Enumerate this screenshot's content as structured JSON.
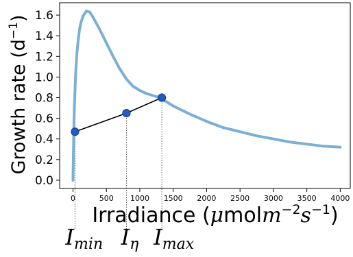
{
  "chart_data": {
    "type": "line",
    "xlabel": "Irradiance (μmolm⁻²s⁻¹)",
    "xlabel_parts": {
      "prefix": "Irradiance (",
      "mu": "μ",
      "mol": "mol",
      "m": "m",
      "m_exp": "−2",
      "s": "s",
      "s_exp": "−1",
      "suffix": ")"
    },
    "ylabel": "Growth rate (d⁻¹)",
    "ylabel_parts": {
      "prefix": "Growth rate (d",
      "exp": "−1",
      "suffix": ")"
    },
    "xlim": [
      -200,
      4150
    ],
    "ylim": [
      -0.08,
      1.72
    ],
    "x_ticks": [
      0,
      500,
      1000,
      1500,
      2000,
      2500,
      3000,
      3500,
      4000
    ],
    "y_ticks": [
      0.0,
      0.2,
      0.4,
      0.6,
      0.8,
      1.0,
      1.2,
      1.4,
      1.6
    ],
    "grid": false,
    "series": [
      {
        "color": "#7bafd4",
        "x": [
          0,
          10,
          20,
          40,
          60,
          80,
          100,
          120,
          150,
          200,
          250,
          300,
          400,
          500,
          600,
          700,
          800,
          900,
          1000,
          1100,
          1200,
          1300,
          1500,
          1750,
          2000,
          2250,
          2500,
          2750,
          3000,
          3250,
          3500,
          3750,
          4000
        ],
        "y": [
          0.0,
          0.41,
          0.69,
          1.04,
          1.24,
          1.37,
          1.47,
          1.53,
          1.59,
          1.64,
          1.63,
          1.58,
          1.46,
          1.33,
          1.2,
          1.08,
          0.98,
          0.91,
          0.87,
          0.84,
          0.82,
          0.8,
          0.72,
          0.64,
          0.57,
          0.51,
          0.47,
          0.43,
          0.4,
          0.37,
          0.35,
          0.33,
          0.32
        ]
      }
    ],
    "points": [
      {
        "label_main": "I",
        "label_sub": "min",
        "x": 30,
        "y": 0.47
      },
      {
        "label_main": "I",
        "label_sub": "η",
        "x": 800,
        "y": 0.65
      },
      {
        "label_main": "I",
        "label_sub": "max",
        "x": 1330,
        "y": 0.8
      }
    ],
    "colors": {
      "curve": "#7bafd4",
      "marker": "#1f5cc8",
      "marker_edge": "#1b3f86",
      "connector": "#000000"
    }
  }
}
